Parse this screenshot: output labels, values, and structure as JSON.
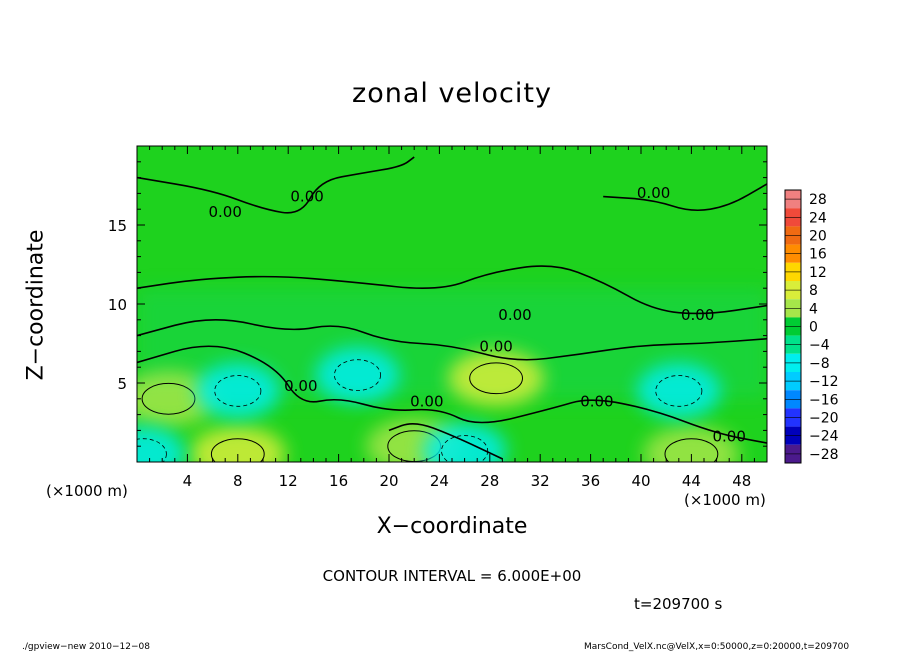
{
  "chart_data": {
    "type": "heatmap",
    "title": "zonal velocity",
    "xlabel": "X−coordinate",
    "ylabel": "Z−coordinate",
    "x_unit_left": "(×1000 m)",
    "x_unit_right": "(×1000 m)",
    "xlim": [
      0,
      50
    ],
    "ylim": [
      0,
      20
    ],
    "x_ticks": [
      4,
      8,
      12,
      16,
      20,
      24,
      28,
      32,
      36,
      40,
      44,
      48
    ],
    "y_ticks": [
      5,
      10,
      15
    ],
    "colorbar": {
      "levels": [
        28,
        24,
        20,
        16,
        12,
        8,
        4,
        0,
        -4,
        -8,
        -12,
        -16,
        -20,
        -24,
        -28
      ],
      "labels": [
        "28",
        "24",
        "20",
        "16",
        "12",
        "8",
        "4",
        "0",
        "−4",
        "−8",
        "−12",
        "−16",
        "−20",
        "−24",
        "−28"
      ],
      "colors": [
        "#f08080",
        "#f04a3a",
        "#f06a12",
        "#ff8c00",
        "#ffd700",
        "#d9ee3a",
        "#a6e64a",
        "#00cc33",
        "#00e28a",
        "#00eeee",
        "#00ccff",
        "#0088ff",
        "#2233ff",
        "#0000bb",
        "#4b1a8c"
      ]
    },
    "contour_labels": [
      {
        "text": "0.00",
        "x": 13.5,
        "z": 16.5
      },
      {
        "text": "0.00",
        "x": 7,
        "z": 15.5
      },
      {
        "text": "0.00",
        "x": 41,
        "z": 16.7
      },
      {
        "text": "0.00",
        "x": 30,
        "z": 9.0
      },
      {
        "text": "0.00",
        "x": 44.5,
        "z": 9.0
      },
      {
        "text": "0.00",
        "x": 28.5,
        "z": 7.0
      },
      {
        "text": "0.00",
        "x": 13,
        "z": 4.5
      },
      {
        "text": "0.00",
        "x": 23,
        "z": 3.5
      },
      {
        "text": "0.00",
        "x": 36.5,
        "z": 3.5
      },
      {
        "text": "0.00",
        "x": 47,
        "z": 1.3
      }
    ],
    "features": [
      {
        "kind": "positive",
        "x": 28.5,
        "z": 5.3,
        "value": 8
      },
      {
        "kind": "positive",
        "x": 2.5,
        "z": 4.0,
        "value": 6
      },
      {
        "kind": "positive",
        "x": 8,
        "z": 0.5,
        "value": 8
      },
      {
        "kind": "positive",
        "x": 44,
        "z": 0.5,
        "value": 6
      },
      {
        "kind": "positive",
        "x": 22,
        "z": 1.0,
        "value": 4
      },
      {
        "kind": "negative",
        "x": 17.5,
        "z": 5.5,
        "value": -6
      },
      {
        "kind": "negative",
        "x": 8,
        "z": 4.5,
        "value": -5
      },
      {
        "kind": "negative",
        "x": 43,
        "z": 4.5,
        "value": -7
      },
      {
        "kind": "negative",
        "x": 0.5,
        "z": 0.5,
        "value": -8
      },
      {
        "kind": "negative",
        "x": 26,
        "z": 0.7,
        "value": -6
      }
    ]
  },
  "labels": {
    "contour_interval": "CONTOUR INTERVAL = 6.000E+00",
    "time": "t=209700 s",
    "footer_left": "./gpview−new   2010−12−08",
    "footer_right": "MarsCond_VelX.nc@VelX,x=0:50000,z=0:20000,t=209700"
  }
}
